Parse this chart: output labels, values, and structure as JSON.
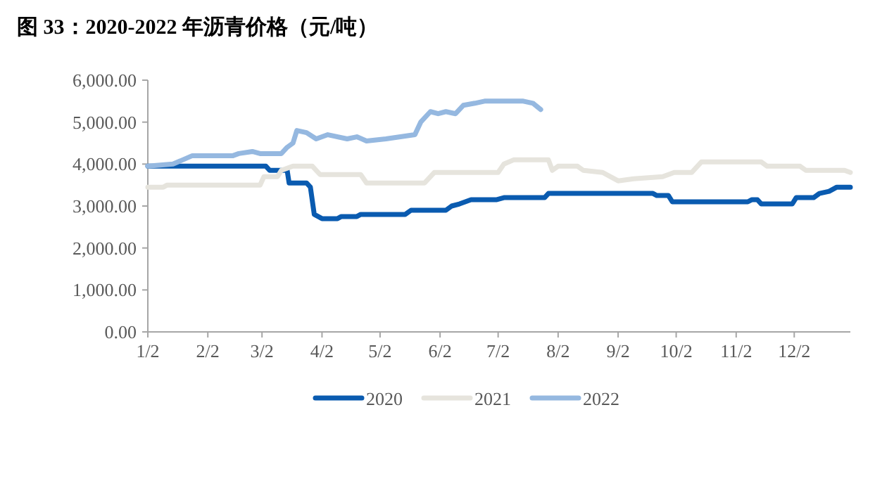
{
  "chart_data": {
    "type": "line",
    "title": "图 33：2020-2022 年沥青价格（元/吨）",
    "xlim": [
      "--01-02",
      "--12-31"
    ],
    "xticks": [
      {
        "value": "--01-02",
        "label": "1/2"
      },
      {
        "value": "--02-02",
        "label": "2/2"
      },
      {
        "value": "--03-02",
        "label": "3/2"
      },
      {
        "value": "--04-02",
        "label": "4/2"
      },
      {
        "value": "--05-02",
        "label": "5/2"
      },
      {
        "value": "--06-02",
        "label": "6/2"
      },
      {
        "value": "--07-02",
        "label": "7/2"
      },
      {
        "value": "--08-02",
        "label": "8/2"
      },
      {
        "value": "--09-02",
        "label": "9/2"
      },
      {
        "value": "--10-02",
        "label": "10/2"
      },
      {
        "value": "--11-02",
        "label": "11/2"
      },
      {
        "value": "--12-02",
        "label": "12/2"
      }
    ],
    "ylim": [
      0,
      6000
    ],
    "yticks": [
      {
        "value": 0,
        "label": "0.00"
      },
      {
        "value": 1000,
        "label": "1,000.00"
      },
      {
        "value": 2000,
        "label": "2,000.00"
      },
      {
        "value": 3000,
        "label": "3,000.00"
      },
      {
        "value": 4000,
        "label": "4,000.00"
      },
      {
        "value": 5000,
        "label": "5,000.00"
      },
      {
        "value": 6000,
        "label": "6,000.00"
      }
    ],
    "grid": false,
    "legend": "bottom",
    "marker": "none",
    "line_style": "solid",
    "series": [
      {
        "name": "2020",
        "color": "#0a5bb0",
        "x": [
          "--01-02",
          "--03-04",
          "--03-06",
          "--03-15",
          "--03-16",
          "--03-25",
          "--03-27",
          "--03-29",
          "--04-02",
          "--04-10",
          "--04-12",
          "--04-20",
          "--04-22",
          "--05-15",
          "--05-18",
          "--06-05",
          "--06-08",
          "--06-12",
          "--06-18",
          "--07-01",
          "--07-05",
          "--07-26",
          "--07-28",
          "--09-20",
          "--09-22",
          "--09-28",
          "--09-30",
          "--11-08",
          "--11-10",
          "--11-13",
          "--11-15",
          "--12-01",
          "--12-03",
          "--12-12",
          "--12-15",
          "--12-20",
          "--12-24",
          "--12-31"
        ],
        "values": [
          3950,
          3950,
          3850,
          3850,
          3550,
          3550,
          3450,
          2800,
          2700,
          2700,
          2750,
          2750,
          2800,
          2800,
          2900,
          2900,
          3000,
          3050,
          3150,
          3150,
          3200,
          3200,
          3300,
          3300,
          3250,
          3250,
          3100,
          3100,
          3150,
          3150,
          3050,
          3050,
          3200,
          3200,
          3300,
          3350,
          3450,
          3450
        ]
      },
      {
        "name": "2021",
        "color": "#e6e4dd",
        "x": [
          "--01-02",
          "--01-10",
          "--01-12",
          "--03-01",
          "--03-03",
          "--03-10",
          "--03-12",
          "--03-18",
          "--03-28",
          "--04-01",
          "--04-22",
          "--04-25",
          "--05-25",
          "--05-30",
          "--07-02",
          "--07-05",
          "--07-10",
          "--07-28",
          "--07-30",
          "--08-02",
          "--08-12",
          "--08-15",
          "--08-25",
          "--09-02",
          "--09-10",
          "--09-25",
          "--10-01",
          "--10-10",
          "--10-15",
          "--11-15",
          "--11-18",
          "--12-05",
          "--12-08",
          "--12-28",
          "--12-31"
        ],
        "values": [
          3450,
          3450,
          3500,
          3500,
          3700,
          3700,
          3850,
          3950,
          3950,
          3750,
          3750,
          3550,
          3550,
          3800,
          3800,
          4000,
          4100,
          4100,
          3850,
          3950,
          3950,
          3850,
          3800,
          3600,
          3650,
          3700,
          3800,
          3800,
          4050,
          4050,
          3950,
          3950,
          3850,
          3850,
          3800
        ]
      },
      {
        "name": "2022",
        "color": "#95b8e0",
        "x": [
          "--01-02",
          "--01-15",
          "--01-20",
          "--01-25",
          "--02-15",
          "--02-18",
          "--02-25",
          "--03-01",
          "--03-12",
          "--03-15",
          "--03-18",
          "--03-20",
          "--03-25",
          "--03-30",
          "--04-05",
          "--04-15",
          "--04-20",
          "--04-25",
          "--05-05",
          "--05-20",
          "--05-23",
          "--05-28",
          "--06-01",
          "--06-05",
          "--06-10",
          "--06-14",
          "--06-20",
          "--06-25",
          "--07-15",
          "--07-20",
          "--07-24"
        ],
        "values": [
          3950,
          4000,
          4100,
          4200,
          4200,
          4250,
          4300,
          4250,
          4250,
          4400,
          4500,
          4800,
          4750,
          4600,
          4700,
          4600,
          4650,
          4550,
          4600,
          4700,
          5000,
          5250,
          5200,
          5250,
          5200,
          5400,
          5450,
          5500,
          5500,
          5450,
          5300
        ]
      }
    ]
  }
}
